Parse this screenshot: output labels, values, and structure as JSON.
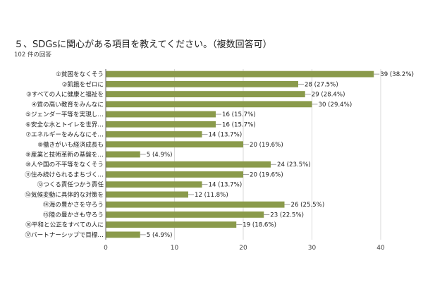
{
  "title": "５、SDGsに関心がある項目を教えてください。（複数回答可）",
  "subtitle": "102 件の回答",
  "chart_data": {
    "type": "bar",
    "orientation": "horizontal",
    "categories": [
      "①貧困をなくそう",
      "②飢餓をゼロに",
      "③すべての人に健康と福祉を",
      "④質の高い教育をみんなに",
      "⑤ジェンダー平等を実現し…",
      "⑥安全な水とトイレを世界…",
      "⑦エネルギーをみんなにそ…",
      "⑧働きがいも経済成長も",
      "⑨産業と技術革新の基盤を…",
      "⑩人や国の不平等をなくそう",
      "⑪住み続けられるまちづく…",
      "⑫つくる責任つかう責任",
      "⑬気候変動に具体的な対策を",
      "⑭海の豊かさを守ろう",
      "⑮陸の豊かさも守ろう",
      "⑯平和と公正をすべての人に",
      "⑰パートナーシップで目標…"
    ],
    "values": [
      39,
      28,
      29,
      30,
      16,
      16,
      14,
      20,
      5,
      24,
      20,
      14,
      12,
      26,
      23,
      19,
      5
    ],
    "value_labels": [
      "39 (38.2%)",
      "28 (27.5%)",
      "29 (28.4%)",
      "30 (29.4%)",
      "16 (15.7%)",
      "16 (15.7%)",
      "14 (13.7%)",
      "20 (19.6%)",
      "5 (4.9%)",
      "24 (23.5%)",
      "20 (19.6%)",
      "14 (13.7%)",
      "12 (11.8%)",
      "26 (25.5%)",
      "23 (22.5%)",
      "19 (18.6%)",
      "5 (4.9%)"
    ],
    "xticks": [
      "0",
      "10",
      "20",
      "30",
      "40"
    ],
    "xlim": [
      0,
      40
    ],
    "grid": true,
    "colors": {
      "bar": "#8a9a4b",
      "grid": "#d9d9d9",
      "axis": "#666666"
    }
  }
}
